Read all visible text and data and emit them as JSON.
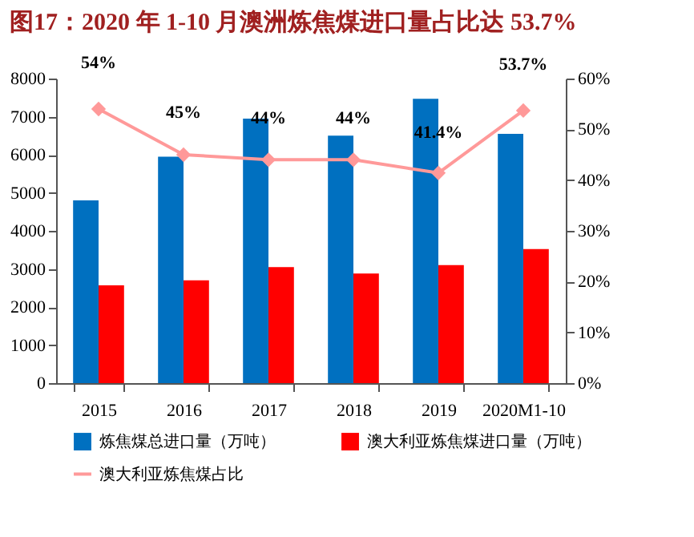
{
  "chart_data": {
    "type": "bar",
    "title": "图17：2020 年 1-10 月澳洲炼焦煤进口量占比达 53.7%",
    "categories": [
      "2015",
      "2016",
      "2017",
      "2018",
      "2019",
      "2020M1-10"
    ],
    "series": [
      {
        "name": "炼焦煤总进口量（万吨）",
        "color": "#0070c0",
        "values": [
          4800,
          5950,
          6950,
          6500,
          7470,
          6550
        ]
      },
      {
        "name": "澳大利亚炼焦煤进口量（万吨）",
        "color": "#ff0000",
        "values": [
          2570,
          2700,
          3050,
          2880,
          3100,
          3520
        ]
      },
      {
        "name": "澳大利亚炼焦煤占比",
        "type": "line",
        "axis": "y2",
        "color": "#ff9999",
        "marker": "diamond",
        "values": [
          54,
          45,
          44,
          44,
          41.4,
          53.7
        ],
        "value_labels": [
          "54%",
          "45%",
          "44%",
          "44%",
          "41.4%",
          "53.7%"
        ]
      }
    ],
    "ylim": [
      0,
      8000
    ],
    "yticks": [
      0,
      1000,
      2000,
      3000,
      4000,
      5000,
      6000,
      7000,
      8000
    ],
    "y2lim": [
      0,
      60
    ],
    "y2ticks": [
      {
        "value": 0,
        "label": "0%"
      },
      {
        "value": 10,
        "label": "10%"
      },
      {
        "value": 20,
        "label": "20%"
      },
      {
        "value": 30,
        "label": "30%"
      },
      {
        "value": 40,
        "label": "40%"
      },
      {
        "value": 50,
        "label": "50%"
      },
      {
        "value": 60,
        "label": "60%"
      }
    ],
    "legend": "bottom"
  }
}
